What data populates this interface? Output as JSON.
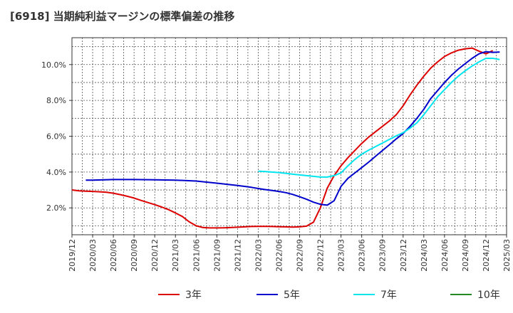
{
  "chart_data": {
    "type": "line",
    "title": "[6918]  当期純利益マージンの標準偏差の推移",
    "x_ticks": [
      "2019/12",
      "2020/03",
      "2020/06",
      "2020/09",
      "2020/12",
      "2021/03",
      "2021/06",
      "2021/09",
      "2021/12",
      "2022/03",
      "2022/06",
      "2022/09",
      "2022/12",
      "2023/03",
      "2023/06",
      "2023/09",
      "2023/12",
      "2024/03",
      "2024/06",
      "2024/09",
      "2024/12",
      "2025/03"
    ],
    "y_ticks": [
      "2.0%",
      "4.0%",
      "6.0%",
      "8.0%",
      "10.0%"
    ],
    "y_tick_values": [
      2,
      4,
      6,
      8,
      10
    ],
    "ylim": [
      0.5,
      11.5
    ],
    "grid": true,
    "legend_position": "bottom",
    "series": [
      {
        "name": "3年",
        "color": "#dd0000",
        "points": [
          [
            "2019/12",
            3.0
          ],
          [
            "2020/01",
            2.95
          ],
          [
            "2020/02",
            2.93
          ],
          [
            "2020/03",
            2.92
          ],
          [
            "2020/04",
            2.9
          ],
          [
            "2020/05",
            2.87
          ],
          [
            "2020/06",
            2.82
          ],
          [
            "2020/07",
            2.74
          ],
          [
            "2020/08",
            2.65
          ],
          [
            "2020/09",
            2.55
          ],
          [
            "2020/10",
            2.42
          ],
          [
            "2020/11",
            2.3
          ],
          [
            "2020/12",
            2.18
          ],
          [
            "2021/01",
            2.05
          ],
          [
            "2021/02",
            1.9
          ],
          [
            "2021/03",
            1.72
          ],
          [
            "2021/04",
            1.52
          ],
          [
            "2021/05",
            1.22
          ],
          [
            "2021/06",
            1.0
          ],
          [
            "2021/07",
            0.9
          ],
          [
            "2021/08",
            0.88
          ],
          [
            "2021/09",
            0.88
          ],
          [
            "2021/10",
            0.89
          ],
          [
            "2021/11",
            0.9
          ],
          [
            "2021/12",
            0.92
          ],
          [
            "2022/01",
            0.94
          ],
          [
            "2022/02",
            0.96
          ],
          [
            "2022/03",
            0.97
          ],
          [
            "2022/04",
            0.97
          ],
          [
            "2022/05",
            0.96
          ],
          [
            "2022/06",
            0.95
          ],
          [
            "2022/07",
            0.94
          ],
          [
            "2022/08",
            0.93
          ],
          [
            "2022/09",
            0.94
          ],
          [
            "2022/10",
            0.98
          ],
          [
            "2022/11",
            1.2
          ],
          [
            "2022/12",
            2.0
          ],
          [
            "2023/01",
            3.1
          ],
          [
            "2023/02",
            3.8
          ],
          [
            "2023/03",
            4.35
          ],
          [
            "2023/04",
            4.8
          ],
          [
            "2023/05",
            5.2
          ],
          [
            "2023/06",
            5.6
          ],
          [
            "2023/07",
            5.95
          ],
          [
            "2023/08",
            6.25
          ],
          [
            "2023/09",
            6.55
          ],
          [
            "2023/10",
            6.85
          ],
          [
            "2023/11",
            7.2
          ],
          [
            "2023/12",
            7.7
          ],
          [
            "2024/01",
            8.3
          ],
          [
            "2024/02",
            8.85
          ],
          [
            "2024/03",
            9.35
          ],
          [
            "2024/04",
            9.8
          ],
          [
            "2024/05",
            10.15
          ],
          [
            "2024/06",
            10.45
          ],
          [
            "2024/07",
            10.65
          ],
          [
            "2024/08",
            10.8
          ],
          [
            "2024/09",
            10.88
          ],
          [
            "2024/10",
            10.92
          ],
          [
            "2024/11",
            10.75
          ],
          [
            "2024/12",
            10.6
          ],
          [
            "2025/01",
            10.78
          ]
        ]
      },
      {
        "name": "5年",
        "color": "#0000cc",
        "points": [
          [
            "2020/02",
            3.55
          ],
          [
            "2020/03",
            3.55
          ],
          [
            "2020/06",
            3.58
          ],
          [
            "2020/09",
            3.58
          ],
          [
            "2020/12",
            3.57
          ],
          [
            "2021/03",
            3.55
          ],
          [
            "2021/06",
            3.5
          ],
          [
            "2021/09",
            3.38
          ],
          [
            "2021/12",
            3.25
          ],
          [
            "2022/01",
            3.2
          ],
          [
            "2022/02",
            3.15
          ],
          [
            "2022/03",
            3.08
          ],
          [
            "2022/04",
            3.02
          ],
          [
            "2022/05",
            2.97
          ],
          [
            "2022/06",
            2.92
          ],
          [
            "2022/07",
            2.85
          ],
          [
            "2022/08",
            2.75
          ],
          [
            "2022/09",
            2.62
          ],
          [
            "2022/10",
            2.48
          ],
          [
            "2022/11",
            2.32
          ],
          [
            "2022/12",
            2.2
          ],
          [
            "2023/01",
            2.15
          ],
          [
            "2023/02",
            2.4
          ],
          [
            "2023/03",
            3.2
          ],
          [
            "2023/04",
            3.65
          ],
          [
            "2023/05",
            3.95
          ],
          [
            "2023/06",
            4.25
          ],
          [
            "2023/07",
            4.55
          ],
          [
            "2023/08",
            4.88
          ],
          [
            "2023/09",
            5.2
          ],
          [
            "2023/10",
            5.52
          ],
          [
            "2023/11",
            5.85
          ],
          [
            "2023/12",
            6.15
          ],
          [
            "2024/01",
            6.55
          ],
          [
            "2024/02",
            7.0
          ],
          [
            "2024/03",
            7.5
          ],
          [
            "2024/04",
            8.1
          ],
          [
            "2024/05",
            8.55
          ],
          [
            "2024/06",
            9.0
          ],
          [
            "2024/07",
            9.4
          ],
          [
            "2024/08",
            9.75
          ],
          [
            "2024/09",
            10.05
          ],
          [
            "2024/10",
            10.35
          ],
          [
            "2024/11",
            10.6
          ],
          [
            "2024/12",
            10.72
          ],
          [
            "2025/01",
            10.68
          ],
          [
            "2025/02",
            10.7
          ]
        ]
      },
      {
        "name": "7年",
        "color": "#00e5ee",
        "points": [
          [
            "2022/03",
            4.05
          ],
          [
            "2022/04",
            4.03
          ],
          [
            "2022/05",
            4.0
          ],
          [
            "2022/06",
            3.97
          ],
          [
            "2022/07",
            3.93
          ],
          [
            "2022/08",
            3.88
          ],
          [
            "2022/09",
            3.84
          ],
          [
            "2022/10",
            3.8
          ],
          [
            "2022/11",
            3.76
          ],
          [
            "2022/12",
            3.72
          ],
          [
            "2023/01",
            3.72
          ],
          [
            "2023/02",
            3.8
          ],
          [
            "2023/03",
            3.95
          ],
          [
            "2023/04",
            4.35
          ],
          [
            "2023/05",
            4.7
          ],
          [
            "2023/06",
            5.0
          ],
          [
            "2023/07",
            5.22
          ],
          [
            "2023/08",
            5.42
          ],
          [
            "2023/09",
            5.62
          ],
          [
            "2023/10",
            5.82
          ],
          [
            "2023/11",
            6.02
          ],
          [
            "2023/12",
            6.2
          ],
          [
            "2024/01",
            6.45
          ],
          [
            "2024/02",
            6.75
          ],
          [
            "2024/03",
            7.2
          ],
          [
            "2024/04",
            7.7
          ],
          [
            "2024/05",
            8.2
          ],
          [
            "2024/06",
            8.6
          ],
          [
            "2024/07",
            9.0
          ],
          [
            "2024/08",
            9.35
          ],
          [
            "2024/09",
            9.65
          ],
          [
            "2024/10",
            9.92
          ],
          [
            "2024/11",
            10.15
          ],
          [
            "2024/12",
            10.35
          ],
          [
            "2025/01",
            10.35
          ],
          [
            "2025/02",
            10.28
          ]
        ]
      },
      {
        "name": "10年",
        "color": "#228b22",
        "points": []
      }
    ]
  }
}
